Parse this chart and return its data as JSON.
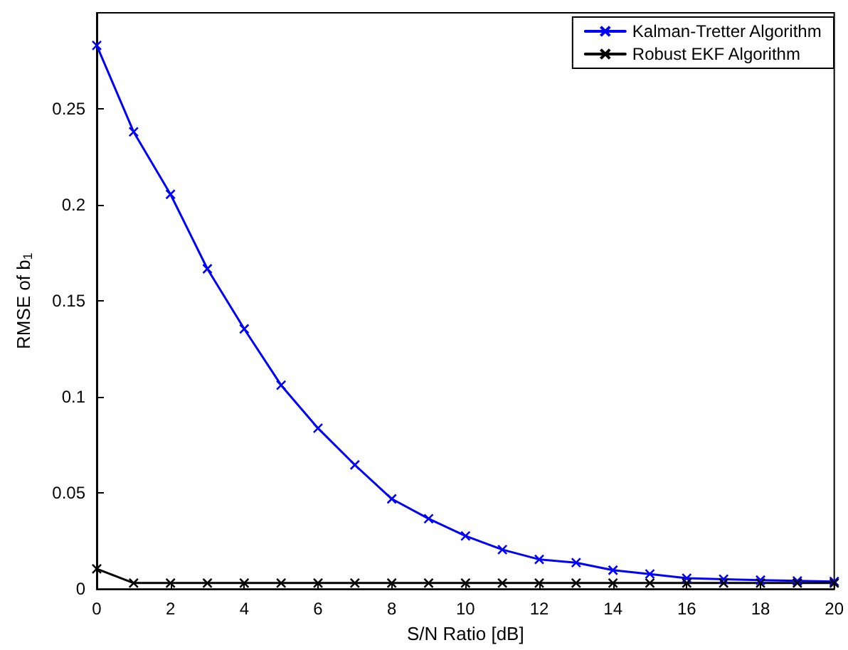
{
  "chart_data": {
    "type": "line",
    "xlabel": "S/N Ratio [dB]",
    "ylabel": "RMSE of b$_{1}$",
    "x": [
      0,
      1,
      2,
      3,
      4,
      5,
      6,
      7,
      8,
      9,
      10,
      11,
      12,
      13,
      14,
      15,
      16,
      17,
      18,
      19,
      20
    ],
    "series": [
      {
        "name": "Kalman-Tretter Algorithm",
        "color": "#0000ff",
        "values": [
          0.283,
          0.238,
          0.2055,
          0.1667,
          0.1354,
          0.1061,
          0.0837,
          0.0646,
          0.0469,
          0.0366,
          0.0276,
          0.0205,
          0.0154,
          0.0137,
          0.0098,
          0.0078,
          0.0056,
          0.0051,
          0.0046,
          0.0042,
          0.0039
        ]
      },
      {
        "name": "Robust EKF Algorithm",
        "color": "#000000",
        "values": [
          0.0105,
          0.0031,
          0.0031,
          0.0031,
          0.0031,
          0.0031,
          0.0031,
          0.0031,
          0.0031,
          0.0031,
          0.0031,
          0.0031,
          0.0031,
          0.0031,
          0.0031,
          0.0031,
          0.0031,
          0.0031,
          0.0031,
          0.0031,
          0.0031
        ]
      }
    ],
    "xlim": [
      0,
      20
    ],
    "xticks": [
      0,
      2,
      4,
      6,
      8,
      10,
      12,
      14,
      16,
      18,
      20
    ],
    "ylim": [
      0,
      0.3
    ],
    "yticks": [
      0,
      0.05,
      0.1,
      0.15,
      0.2,
      0.25
    ],
    "grid": false,
    "legend": "top right",
    "marker": "cross",
    "line_style": "solid"
  }
}
